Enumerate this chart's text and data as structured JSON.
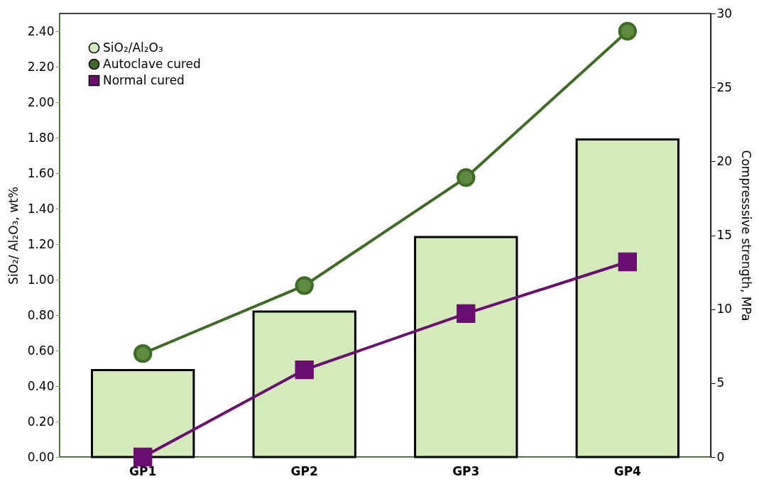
{
  "chart_data": {
    "type": "bar",
    "categories": [
      "GP1",
      "GP2",
      "GP3",
      "GP4"
    ],
    "ylabel": "SiO₂/ Al₂O₃, wt%",
    "y2label": "Compresssive strength, MPa",
    "ylim": [
      0,
      2.5
    ],
    "yticks": [
      {
        "value": 0,
        "label": "0.00"
      },
      {
        "value": 0.2,
        "label": "0.20"
      },
      {
        "value": 0.4,
        "label": "0.40"
      },
      {
        "value": 0.6,
        "label": "0.60"
      },
      {
        "value": 0.8,
        "label": "0.80"
      },
      {
        "value": 1.0,
        "label": "1.00"
      },
      {
        "value": 1.2,
        "label": "1.20"
      },
      {
        "value": 1.4,
        "label": "1.40"
      },
      {
        "value": 1.6,
        "label": "1.60"
      },
      {
        "value": 1.8,
        "label": "1.80"
      },
      {
        "value": 2.0,
        "label": "2.00"
      },
      {
        "value": 2.2,
        "label": "2.20"
      },
      {
        "value": 2.4,
        "label": "2.40"
      }
    ],
    "y2lim": [
      0,
      30
    ],
    "y2ticks": [
      0,
      5,
      10,
      15,
      20,
      25,
      30
    ],
    "legend": "top left",
    "grid": false,
    "series": [
      {
        "name": "SiO₂/Al₂O₃",
        "color": "#d4eabb",
        "values": [
          0.49,
          0.82,
          1.24,
          1.79
        ]
      },
      {
        "name": "Autoclave cured",
        "type": "line",
        "axis": "y2",
        "marker": "circle",
        "color": "#3f6b26",
        "values": [
          7.0,
          11.6,
          18.9,
          28.8
        ]
      },
      {
        "name": "Normal cured",
        "type": "line",
        "axis": "y2",
        "marker": "square",
        "color": "#6a0f6f",
        "values": [
          0.0,
          5.9,
          9.7,
          13.2
        ]
      }
    ]
  }
}
